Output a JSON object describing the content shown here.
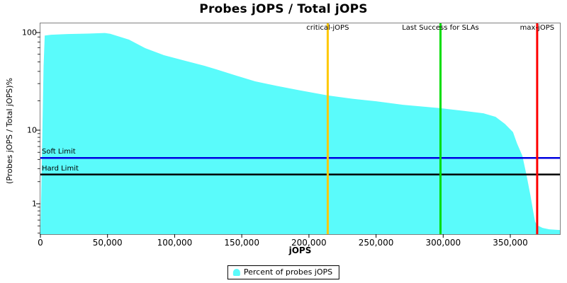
{
  "chart_data": {
    "type": "area",
    "title": "Probes jOPS / Total jOPS",
    "xlabel": "jOPS",
    "ylabel": "(Probes jOPS / Total jOPS)%",
    "grid": false,
    "background": "#FFFFFF",
    "plot_border_color": "#808080",
    "x_axis": {
      "min": 0,
      "max": 387000,
      "ticks": [
        {
          "value": 0,
          "label": "0"
        },
        {
          "value": 50000,
          "label": "50,000"
        },
        {
          "value": 100000,
          "label": "100,000"
        },
        {
          "value": 150000,
          "label": "150,000"
        },
        {
          "value": 200000,
          "label": "200,000"
        },
        {
          "value": 250000,
          "label": "250,000"
        },
        {
          "value": 300000,
          "label": "300,000"
        },
        {
          "value": 350000,
          "label": "350,000"
        }
      ]
    },
    "y_axis": {
      "scale": "log",
      "min": 0.4,
      "max": 125,
      "ticks": [
        {
          "value": 100,
          "label": "100"
        },
        {
          "value": 10,
          "label": "10"
        },
        {
          "value": 1,
          "label": "1"
        }
      ]
    },
    "series": [
      {
        "name": "Percent of probes jOPS",
        "color": "#5AFBFB",
        "points": [
          [
            0,
            0.4
          ],
          [
            800,
            2
          ],
          [
            1600,
            12
          ],
          [
            2400,
            45
          ],
          [
            3200,
            93
          ],
          [
            8000,
            95
          ],
          [
            20000,
            96.5
          ],
          [
            35000,
            97.5
          ],
          [
            48000,
            99
          ],
          [
            52000,
            97
          ],
          [
            66000,
            84.6
          ],
          [
            78000,
            69.3
          ],
          [
            92000,
            58.6
          ],
          [
            108000,
            51.3
          ],
          [
            122000,
            45.7
          ],
          [
            131000,
            42
          ],
          [
            145000,
            36.5
          ],
          [
            160000,
            31.6
          ],
          [
            176000,
            28.4
          ],
          [
            192000,
            25.8
          ],
          [
            214000,
            22.7
          ],
          [
            232000,
            21
          ],
          [
            250000,
            19.8
          ],
          [
            270000,
            18.2
          ],
          [
            298000,
            16.8
          ],
          [
            315000,
            15.8
          ],
          [
            330000,
            14.9
          ],
          [
            339000,
            13.7
          ],
          [
            346000,
            11.6
          ],
          [
            352000,
            9.4
          ],
          [
            355000,
            6.6
          ],
          [
            359000,
            4.5
          ],
          [
            362000,
            2.5
          ],
          [
            365000,
            1.3
          ],
          [
            367000,
            0.8
          ],
          [
            368500,
            0.57
          ],
          [
            370000,
            0.51
          ],
          [
            374000,
            0.47
          ],
          [
            379000,
            0.45
          ],
          [
            387000,
            0.44
          ]
        ]
      }
    ],
    "vertical_markers": [
      {
        "id": "critical",
        "label": "critical-jOPS",
        "value": 214000,
        "color": "#FFC800"
      },
      {
        "id": "sla",
        "label": "Last Success for SLAs",
        "value": 298000,
        "color": "#00DD00"
      },
      {
        "id": "max",
        "label": "max-jOPS",
        "value": 370000,
        "color": "#FF0000"
      }
    ],
    "horizontal_markers": [
      {
        "id": "soft-limit",
        "label": "Soft Limit",
        "value": 4.2,
        "color": "#0000E0"
      },
      {
        "id": "hard-limit",
        "label": "Hard Limit",
        "value": 2.5,
        "color": "#000000"
      }
    ],
    "legend": {
      "position": "bottom",
      "label": "Percent of probes jOPS",
      "swatch_color": "#5AFBFB"
    }
  }
}
